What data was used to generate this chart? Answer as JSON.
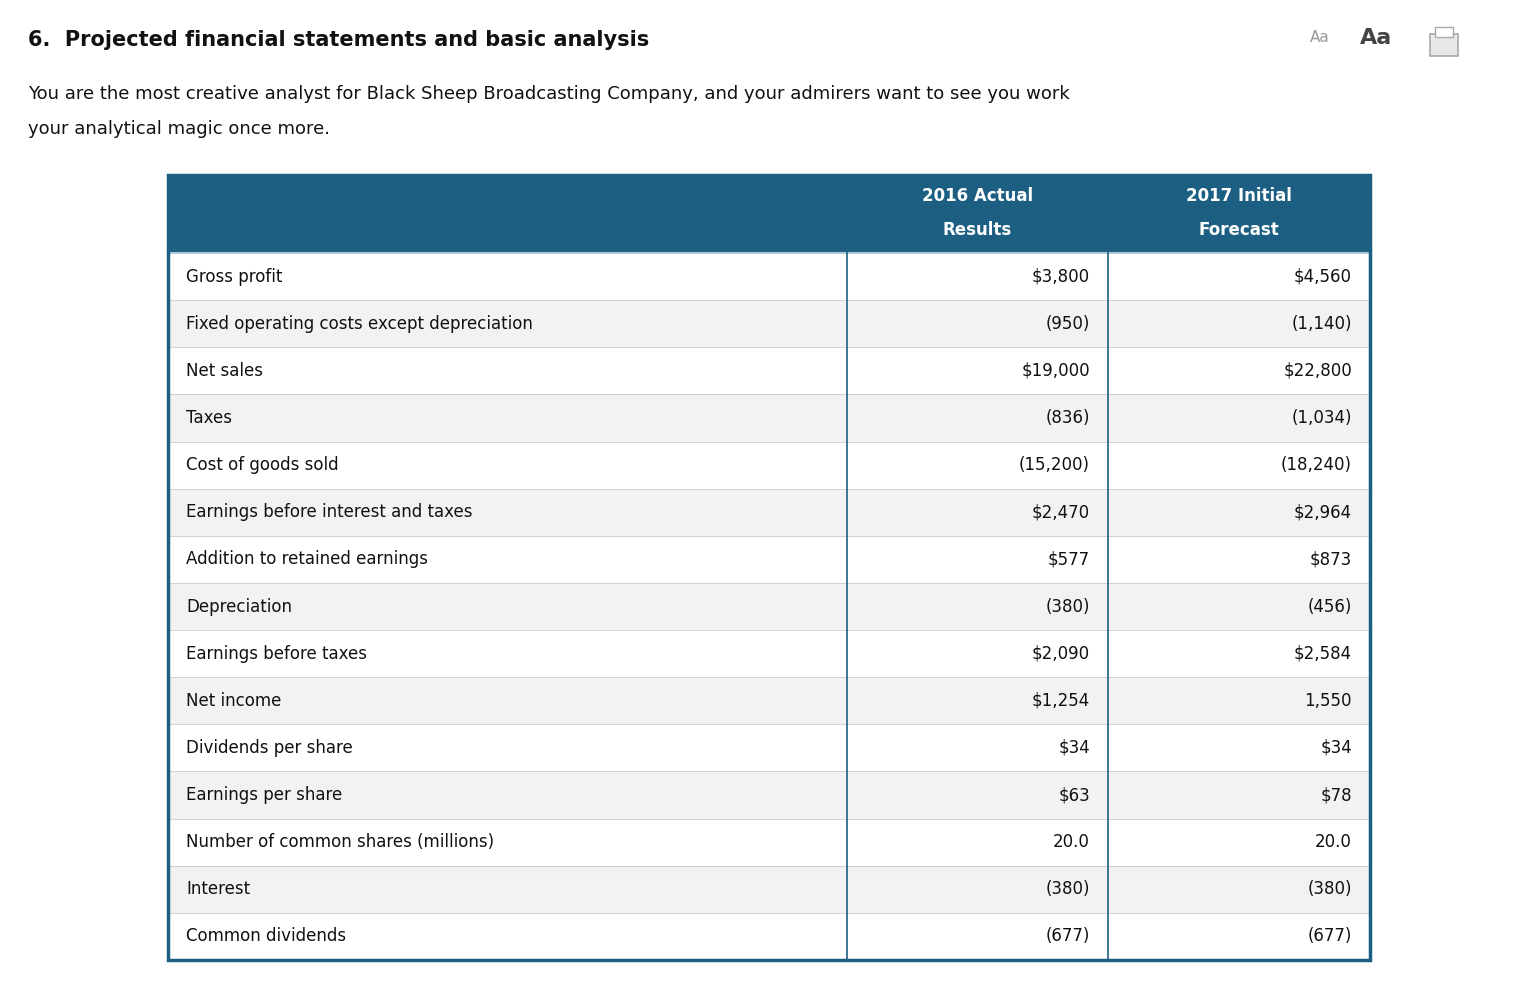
{
  "title": "6.  Projected financial statements and basic analysis",
  "subtitle_line1": "You are the most creative analyst for Black Sheep Broadcasting Company, and your admirers want to see you work",
  "subtitle_line2": "your analytical magic once more.",
  "header_bg_color": "#1c5f82",
  "header_text_color": "#ffffff",
  "col1_header_line1": "2016 Actual",
  "col1_header_line2": "Results",
  "col2_header_line1": "2017 Initial",
  "col2_header_line2": "Forecast",
  "rows": [
    [
      "Gross profit",
      "$3,800",
      "$4,560"
    ],
    [
      "Fixed operating costs except depreciation",
      "(950)",
      "(1,140)"
    ],
    [
      "Net sales",
      "$19,000",
      "$22,800"
    ],
    [
      "Taxes",
      "(836)",
      "(1,034)"
    ],
    [
      "Cost of goods sold",
      "(15,200)",
      "(18,240)"
    ],
    [
      "Earnings before interest and taxes",
      "$2,470",
      "$2,964"
    ],
    [
      "Addition to retained earnings",
      "$577",
      "$873"
    ],
    [
      "Depreciation",
      "(380)",
      "(456)"
    ],
    [
      "Earnings before taxes",
      "$2,090",
      "$2,584"
    ],
    [
      "Net income",
      "$1,254",
      "1,550"
    ],
    [
      "Dividends per share",
      "$34",
      "$34"
    ],
    [
      "Earnings per share",
      "$63",
      "$78"
    ],
    [
      "Number of common shares (millions)",
      "20.0",
      "20.0"
    ],
    [
      "Interest",
      "(380)",
      "(380)"
    ],
    [
      "Common dividends",
      "(677)",
      "(677)"
    ]
  ],
  "table_border_color": "#1c5f82",
  "row_even_color": "#ffffff",
  "row_odd_color": "#f2f2f2",
  "text_color": "#111111",
  "background_color": "#ffffff",
  "title_fontsize": 15,
  "subtitle_fontsize": 13,
  "table_fontsize": 12,
  "header_fontsize": 12,
  "aa_small_color": "#999999",
  "aa_large_color": "#444444",
  "icon_color": "#aaaaaa"
}
